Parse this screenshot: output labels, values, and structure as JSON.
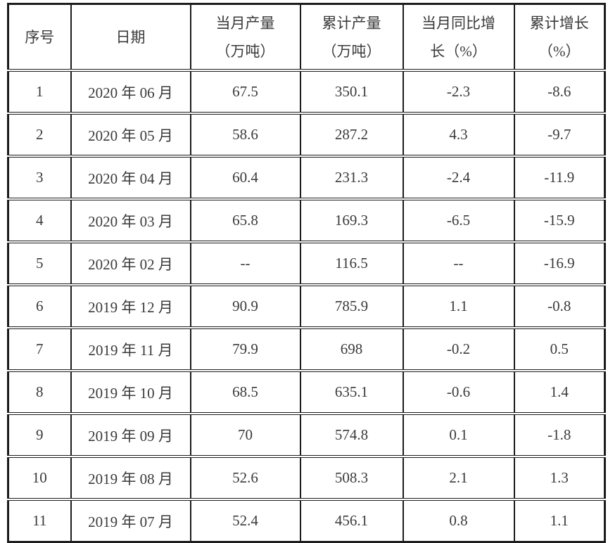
{
  "table": {
    "columns": [
      {
        "id": "index",
        "lines": [
          "序号"
        ]
      },
      {
        "id": "date",
        "lines": [
          "日期"
        ]
      },
      {
        "id": "monthly-output",
        "lines": [
          "当月产量",
          "（万吨）"
        ]
      },
      {
        "id": "cumulative-output",
        "lines": [
          "累计产量",
          "（万吨）"
        ]
      },
      {
        "id": "monthly-yoy",
        "lines": [
          "当月同比增",
          "长（%）"
        ]
      },
      {
        "id": "cumulative-growth",
        "lines": [
          "累计增长",
          "（%）"
        ]
      }
    ],
    "rows": [
      [
        "1",
        "2020 年 06 月",
        "67.5",
        "350.1",
        "-2.3",
        "-8.6"
      ],
      [
        "2",
        "2020 年 05 月",
        "58.6",
        "287.2",
        "4.3",
        "-9.7"
      ],
      [
        "3",
        "2020 年 04 月",
        "60.4",
        "231.3",
        "-2.4",
        "-11.9"
      ],
      [
        "4",
        "2020 年 03 月",
        "65.8",
        "169.3",
        "-6.5",
        "-15.9"
      ],
      [
        "5",
        "2020 年 02 月",
        "--",
        "116.5",
        "--",
        "-16.9"
      ],
      [
        "6",
        "2019 年 12 月",
        "90.9",
        "785.9",
        "1.1",
        "-0.8"
      ],
      [
        "7",
        "2019 年 11 月",
        "79.9",
        "698",
        "-0.2",
        "0.5"
      ],
      [
        "8",
        "2019 年 10 月",
        "68.5",
        "635.1",
        "-0.6",
        "1.4"
      ],
      [
        "9",
        "2019 年 09 月",
        "70",
        "574.8",
        "0.1",
        "-1.8"
      ],
      [
        "10",
        "2019 年 08 月",
        "52.6",
        "508.3",
        "2.1",
        "1.3"
      ],
      [
        "11",
        "2019 年 07 月",
        "52.4",
        "456.1",
        "0.8",
        "1.1"
      ]
    ],
    "colors": {
      "border": "#1c1c1c",
      "text": "#3a3a3a",
      "background": "#ffffff"
    }
  }
}
